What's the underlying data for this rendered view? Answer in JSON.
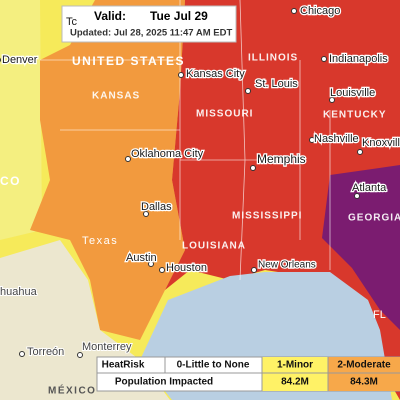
{
  "header": {
    "valid_label": "Valid:",
    "valid_date": "Tue  Jul 29",
    "updated": "Updated: Jul 28, 2025 11:47 AM EDT"
  },
  "regions": [
    "UNITED STATES",
    "KANSAS",
    "ILLINOIS",
    "MISSOURI",
    "KENTUCKY",
    "MISSISSIPPI",
    "LOUISIANA",
    "GEORGIA",
    "CO",
    "Texas",
    "MÉXICO",
    "Tc",
    "FL"
  ],
  "cities": [
    "Denver",
    "Chicago",
    "Indianapolis",
    "Kansas City",
    "St. Louis",
    "Louisville",
    "Nashville",
    "Knoxville",
    "Memphis",
    "Oklahoma City",
    "Atlanta",
    "Dallas",
    "Austin",
    "Houston",
    "New Orleans",
    "Monterrey",
    "Torreón",
    "huahua"
  ],
  "legend": {
    "headers": [
      "HeatRisk",
      "0-Little to None",
      "1-Minor",
      "2-Moderate"
    ],
    "row_label": "Population Impacted",
    "population": [
      "84.2M",
      "84.3M"
    ]
  }
}
